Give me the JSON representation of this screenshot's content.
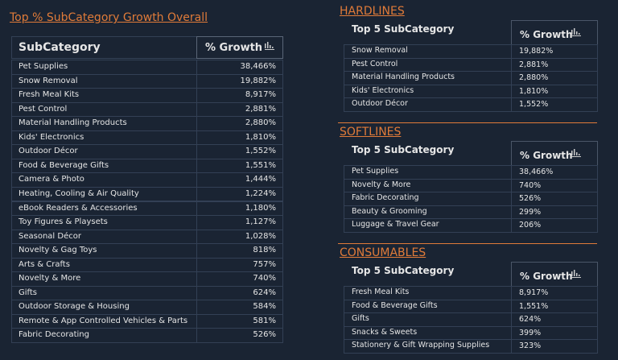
{
  "left": {
    "title": "Top % SubCategory Growth Overall",
    "header": [
      "SubCategory",
      "% Growth"
    ],
    "rows": [
      [
        "Pet Supplies",
        "38,466%"
      ],
      [
        "Snow Removal",
        "19,882%"
      ],
      [
        "Fresh Meal Kits",
        "8,917%"
      ],
      [
        "Pest Control",
        "2,881%"
      ],
      [
        "Material Handling Products",
        "2,880%"
      ],
      [
        "Kids' Electronics",
        "1,810%"
      ],
      [
        "Outdoor Décor",
        "1,552%"
      ],
      [
        "Food & Beverage Gifts",
        "1,551%"
      ],
      [
        "Camera & Photo",
        "1,444%"
      ],
      [
        "Heating, Cooling & Air Quality",
        "1,224%"
      ],
      [
        "eBook Readers & Accessories",
        "1,180%"
      ],
      [
        "Toy Figures & Playsets",
        "1,127%"
      ],
      [
        "Seasonal Décor",
        "1,028%"
      ],
      [
        "Novelty & Gag Toys",
        "818%"
      ],
      [
        "Arts & Crafts",
        "757%"
      ],
      [
        "Novelty & More",
        "740%"
      ],
      [
        "Gifts",
        "624%"
      ],
      [
        "Outdoor Storage & Housing",
        "584%"
      ],
      [
        "Remote & App Controlled Vehicles & Parts",
        "581%"
      ],
      [
        "Fabric Decorating",
        "526%"
      ]
    ]
  },
  "sections": [
    {
      "title": "HARDLINES",
      "header": [
        "Top 5 SubCategory",
        "% Growth"
      ],
      "rows": [
        [
          "Snow Removal",
          "19,882%"
        ],
        [
          "Pest Control",
          "2,881%"
        ],
        [
          "Material Handling Products",
          "2,880%"
        ],
        [
          "Kids' Electronics",
          "1,810%"
        ],
        [
          "Outdoor Décor",
          "1,552%"
        ]
      ]
    },
    {
      "title": "SOFTLINES",
      "header": [
        "Top 5 SubCategory",
        "% Growth"
      ],
      "rows": [
        [
          "Pet Supplies",
          "38,466%"
        ],
        [
          "Novelty & More",
          "740%"
        ],
        [
          "Fabric Decorating",
          "526%"
        ],
        [
          "Beauty & Grooming",
          "299%"
        ],
        [
          "Luggage & Travel Gear",
          "206%"
        ]
      ]
    },
    {
      "title": "CONSUMABLES",
      "header": [
        "Top 5 SubCategory",
        "% Growth"
      ],
      "rows": [
        [
          "Fresh Meal Kits",
          "8,917%"
        ],
        [
          "Food & Beverage Gifts",
          "1,551%"
        ],
        [
          "Gifts",
          "624%"
        ],
        [
          "Snacks & Sweets",
          "399%"
        ],
        [
          "Stationery & Gift Wrapping Supplies",
          "323%"
        ]
      ]
    }
  ]
}
